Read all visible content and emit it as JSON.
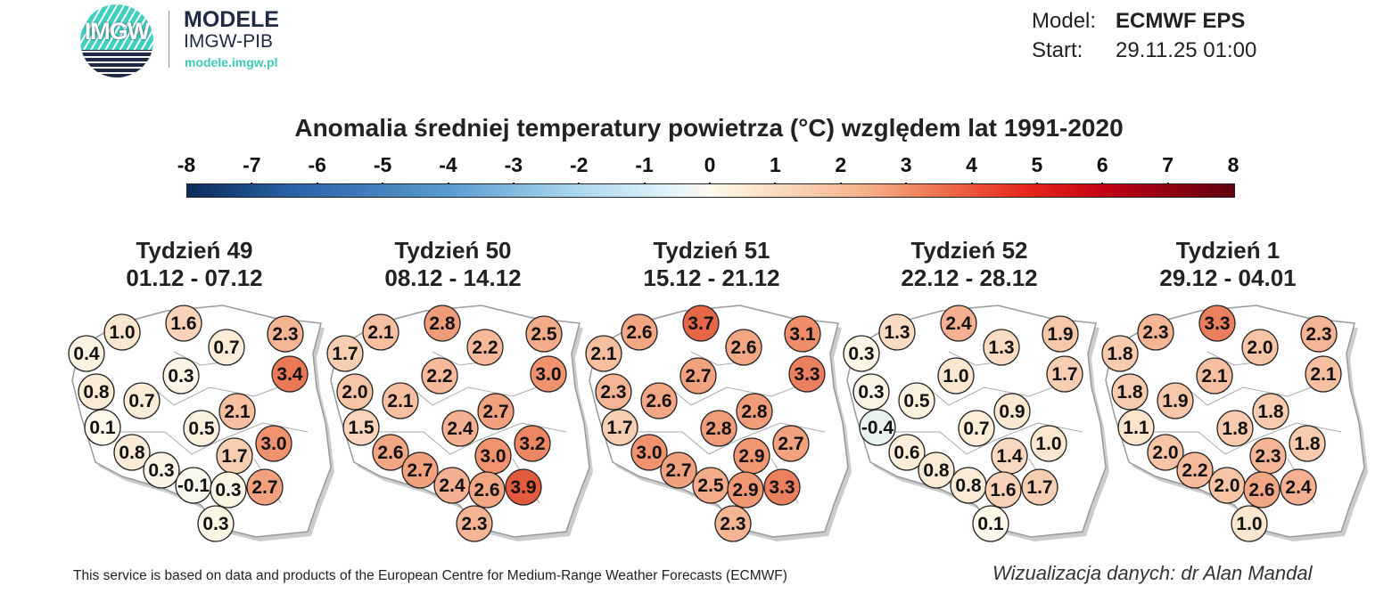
{
  "logo": {
    "text": "IMGW",
    "brand": "MODELE",
    "org": "IMGW-PIB",
    "site": "modele.imgw.pl"
  },
  "meta": {
    "model_label": "Model:",
    "model_value": "ECMWF EPS",
    "start_label": "Start:",
    "start_value": "29.11.25 01:00"
  },
  "title": "Anomalia średniej temperatury powietrza (°C) względem lat 1991-2020",
  "colorbar": {
    "ticks": [
      "-8",
      "-7",
      "-6",
      "-5",
      "-4",
      "-3",
      "-2",
      "-1",
      "0",
      "1",
      "2",
      "3",
      "4",
      "5",
      "6",
      "7",
      "8"
    ],
    "range": [
      -8,
      8
    ]
  },
  "maps": [
    {
      "week": "Tydzień 49",
      "dates": "01.12 - 07.12",
      "values": [
        0.4,
        1.0,
        1.6,
        0.7,
        2.3,
        3.4,
        0.3,
        0.8,
        0.7,
        2.1,
        0.1,
        0.5,
        0.8,
        1.7,
        3.0,
        0.3,
        -0.1,
        0.3,
        2.7,
        0.3
      ]
    },
    {
      "week": "Tydzień 50",
      "dates": "08.12 - 14.12",
      "values": [
        1.7,
        2.1,
        2.8,
        2.2,
        2.5,
        3.0,
        2.2,
        2.0,
        2.1,
        2.7,
        1.5,
        2.4,
        2.6,
        3.0,
        3.2,
        2.7,
        2.4,
        2.6,
        3.9,
        2.3
      ]
    },
    {
      "week": "Tydzień 51",
      "dates": "15.12 - 21.12",
      "values": [
        2.1,
        2.6,
        3.7,
        2.6,
        3.1,
        3.3,
        2.7,
        2.3,
        2.6,
        2.8,
        1.7,
        2.8,
        3.0,
        2.9,
        2.7,
        2.7,
        2.5,
        2.9,
        3.3,
        2.3
      ]
    },
    {
      "week": "Tydzień 52",
      "dates": "22.12 - 28.12",
      "values": [
        0.3,
        1.3,
        2.4,
        1.3,
        1.9,
        1.7,
        1.0,
        0.3,
        0.5,
        0.9,
        -0.4,
        0.7,
        0.6,
        1.4,
        1.0,
        0.8,
        0.8,
        1.6,
        1.7,
        0.1
      ]
    },
    {
      "week": "Tydzień 1",
      "dates": "29.12 - 04.01",
      "values": [
        1.8,
        2.3,
        3.3,
        2.0,
        2.3,
        2.1,
        2.1,
        1.8,
        1.9,
        1.8,
        1.1,
        1.8,
        2.0,
        2.3,
        1.8,
        2.2,
        2.0,
        2.6,
        2.4,
        1.0
      ]
    }
  ],
  "footer": "This service is based on data and products of the European Centre for Medium-Range Weather Forecasts (ECMWF)",
  "credit": "Wizualizacja danych: dr Alan Mandal"
}
